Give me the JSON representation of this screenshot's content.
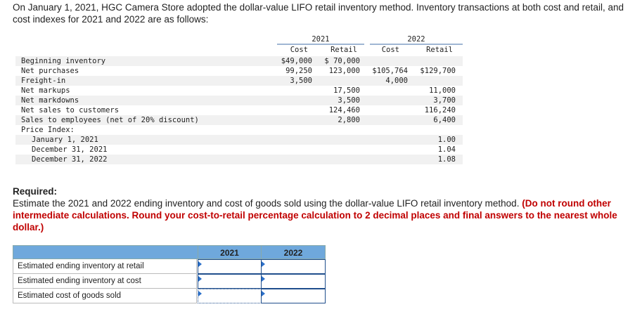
{
  "intro": "On January 1, 2021, HGC Camera Store adopted the dollar-value LIFO retail inventory method. Inventory transactions at both cost and retail, and cost indexes for 2021 and 2022 are as follows:",
  "table": {
    "year1": "2021",
    "year2": "2022",
    "col_cost1": "Cost",
    "col_retail1": "Retail",
    "col_cost2": "Cost",
    "col_retail2": "Retail",
    "rows": [
      {
        "label": "Beginning inventory",
        "c1": "$49,000",
        "c2": "$ 70,000",
        "c3": "",
        "c4": ""
      },
      {
        "label": "Net purchases",
        "c1": "99,250",
        "c2": "123,000",
        "c3": "$105,764",
        "c4": "$129,700"
      },
      {
        "label": "Freight-in",
        "c1": "3,500",
        "c2": "",
        "c3": "4,000",
        "c4": ""
      },
      {
        "label": "Net markups",
        "c1": "",
        "c2": "17,500",
        "c3": "",
        "c4": "11,000"
      },
      {
        "label": "Net markdowns",
        "c1": "",
        "c2": "3,500",
        "c3": "",
        "c4": "3,700"
      },
      {
        "label": "Net sales to customers",
        "c1": "",
        "c2": "124,460",
        "c3": "",
        "c4": "116,240"
      },
      {
        "label": "Sales to employees (net of 20% discount)",
        "c1": "",
        "c2": "2,800",
        "c3": "",
        "c4": "6,400"
      },
      {
        "label": "Price Index:",
        "c1": "",
        "c2": "",
        "c3": "",
        "c4": ""
      },
      {
        "label": "January 1, 2021",
        "c1": "",
        "c2": "",
        "c3": "",
        "c4": "1.00"
      },
      {
        "label": "December 31, 2021",
        "c1": "",
        "c2": "",
        "c3": "",
        "c4": "1.04"
      },
      {
        "label": "December 31, 2022",
        "c1": "",
        "c2": "",
        "c3": "",
        "c4": "1.08"
      }
    ]
  },
  "required": {
    "title": "Required:",
    "text": "Estimate the 2021 and 2022 ending inventory and cost of goods sold using the dollar-value LIFO retail inventory method.",
    "note": "(Do not round other intermediate calculations. Round your cost-to-retail percentage calculation to 2 decimal places and final answers to the nearest whole dollar.)"
  },
  "answer": {
    "col1": "2021",
    "col2": "2022",
    "rows": [
      {
        "label": "Estimated ending inventory at retail",
        "v2021": "",
        "v2022": ""
      },
      {
        "label": "Estimated ending inventory at cost",
        "v2021": "",
        "v2022": ""
      },
      {
        "label": "Estimated cost of goods sold",
        "v2021": "",
        "v2022": ""
      }
    ]
  }
}
